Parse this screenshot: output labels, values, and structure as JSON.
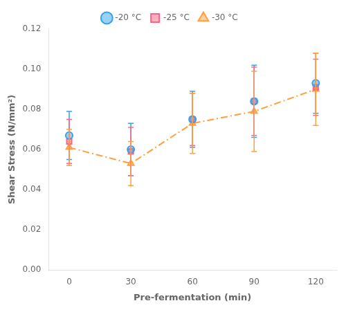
{
  "chart_data": {
    "type": "scatter",
    "x": [
      0,
      30,
      60,
      90,
      120
    ],
    "series": [
      {
        "name": "-20 °C",
        "values": [
          0.067,
          0.06,
          0.075,
          0.084,
          0.093
        ],
        "yerr": [
          0.012,
          0.013,
          0.014,
          0.018,
          0.015
        ],
        "marker": "circle",
        "line_style": "none"
      },
      {
        "name": "-25 °C",
        "values": [
          0.064,
          0.059,
          0.075,
          0.084,
          0.091
        ],
        "yerr": [
          0.011,
          0.012,
          0.013,
          0.017,
          0.014
        ],
        "marker": "square",
        "line_style": "none"
      },
      {
        "name": "-30 °C",
        "values": [
          0.061,
          0.053,
          0.073,
          0.079,
          0.09
        ],
        "yerr": [
          0.009,
          0.011,
          0.015,
          0.02,
          0.018
        ],
        "marker": "triangle",
        "line_style": "dashdot"
      }
    ],
    "xlabel": "Pre-fermentation (min)",
    "ylabel": "Shear Stress (N/mm²)",
    "xlim": [
      -10,
      130
    ],
    "xticks": [
      0,
      30,
      60,
      90,
      120
    ],
    "ylim": [
      0,
      0.12
    ],
    "yticks": [
      {
        "value": 0,
        "label": "0.00"
      },
      0.02,
      0.04,
      0.06,
      0.08,
      {
        "value": 0.1,
        "label": "0.10"
      },
      0.12
    ],
    "grid": false,
    "legend": "top"
  }
}
